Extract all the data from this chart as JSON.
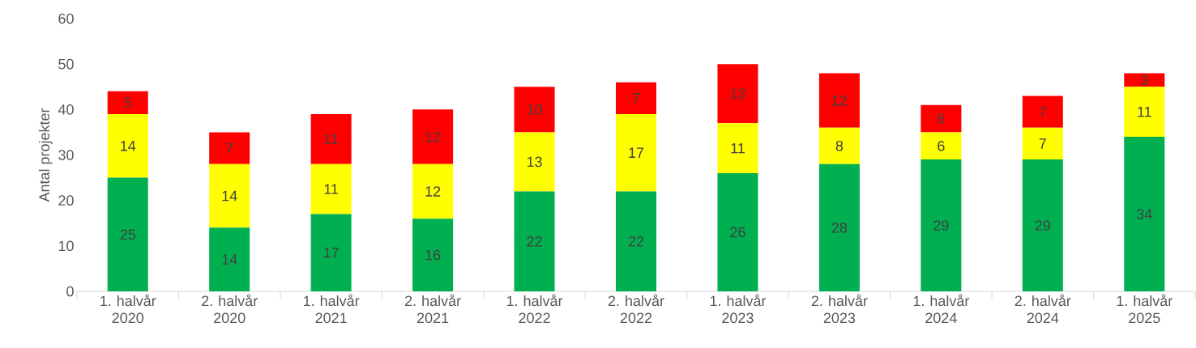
{
  "chart_data": {
    "type": "bar",
    "stacked": true,
    "ylabel": "Antal projekter",
    "categories": [
      "1. halvår 2020",
      "2. halvår 2020",
      "1. halvår 2021",
      "2. halvår 2021",
      "1. halvår 2022",
      "2. halvår 2022",
      "1. halvår 2023",
      "2. halvår 2023",
      "1. halvår 2024",
      "2. halvår 2024",
      "1. halvår 2025"
    ],
    "series": [
      {
        "color": "#00b050",
        "values": [
          25,
          14,
          17,
          16,
          22,
          22,
          26,
          28,
          29,
          29,
          34
        ]
      },
      {
        "color": "#ffff00",
        "values": [
          14,
          14,
          11,
          12,
          13,
          17,
          11,
          8,
          6,
          7,
          11
        ]
      },
      {
        "color": "#ff0000",
        "values": [
          5,
          7,
          11,
          12,
          10,
          7,
          13,
          12,
          6,
          7,
          3
        ]
      }
    ],
    "ylim": [
      0,
      60
    ],
    "yticks": [
      0,
      10,
      20,
      30,
      40,
      50,
      60
    ],
    "data_labels": true,
    "grid": false
  }
}
